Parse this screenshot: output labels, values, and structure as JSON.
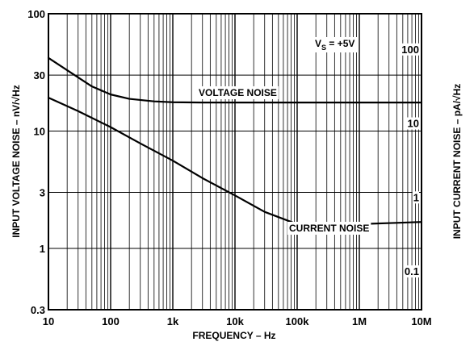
{
  "chart_data": {
    "type": "line",
    "xlabel": "FREQUENCY – Hz",
    "ylabel": "INPUT VOLTAGE NOISE – nV/√Hz",
    "ylabel_right": "INPUT CURRENT NOISE – pA/√Hz",
    "x_scale": "log",
    "y_scale": "log",
    "xlim": [
      10,
      10000000
    ],
    "ylim": [
      0.3,
      100
    ],
    "ylim_right": [
      0.03,
      300
    ],
    "grid": true,
    "x_ticks": [
      {
        "value": 10,
        "label": "10"
      },
      {
        "value": 100,
        "label": "100"
      },
      {
        "value": 1000,
        "label": "1k"
      },
      {
        "value": 10000,
        "label": "10k"
      },
      {
        "value": 100000,
        "label": "100k"
      },
      {
        "value": 1000000,
        "label": "1M"
      },
      {
        "value": 10000000,
        "label": "10M"
      }
    ],
    "y_ticks_left": [
      {
        "value": 0.3,
        "label": "0.3"
      },
      {
        "value": 1,
        "label": "1"
      },
      {
        "value": 3,
        "label": "3"
      },
      {
        "value": 10,
        "label": "10"
      },
      {
        "value": 30,
        "label": "30"
      },
      {
        "value": 100,
        "label": "100"
      }
    ],
    "y_ticks_right": [
      {
        "value": 0.1,
        "label": "0.1"
      },
      {
        "value": 1,
        "label": "1"
      },
      {
        "value": 10,
        "label": "10"
      },
      {
        "value": 100,
        "label": "100"
      }
    ],
    "annotations": {
      "vs_prefix": "V",
      "vs_sub": "S",
      "vs_rest": " = +5V"
    },
    "series": [
      {
        "name": "VOLTAGE NOISE",
        "axis": "left",
        "x": [
          10,
          20,
          50,
          100,
          200,
          500,
          1000,
          3000,
          10000,
          100000,
          1000000,
          10000000
        ],
        "y": [
          42,
          33,
          24,
          20.5,
          18.8,
          17.9,
          17.6,
          17.5,
          17.5,
          17.5,
          17.5,
          17.5
        ]
      },
      {
        "name": "CURRENT NOISE",
        "axis": "right",
        "x": [
          10,
          30,
          100,
          300,
          1000,
          3000,
          10000,
          30000,
          100000,
          200000,
          1000000,
          10000000
        ],
        "y": [
          22,
          14.5,
          8.8,
          5.3,
          3.1,
          1.8,
          1.05,
          0.63,
          0.43,
          0.42,
          0.43,
          0.46
        ]
      }
    ]
  }
}
